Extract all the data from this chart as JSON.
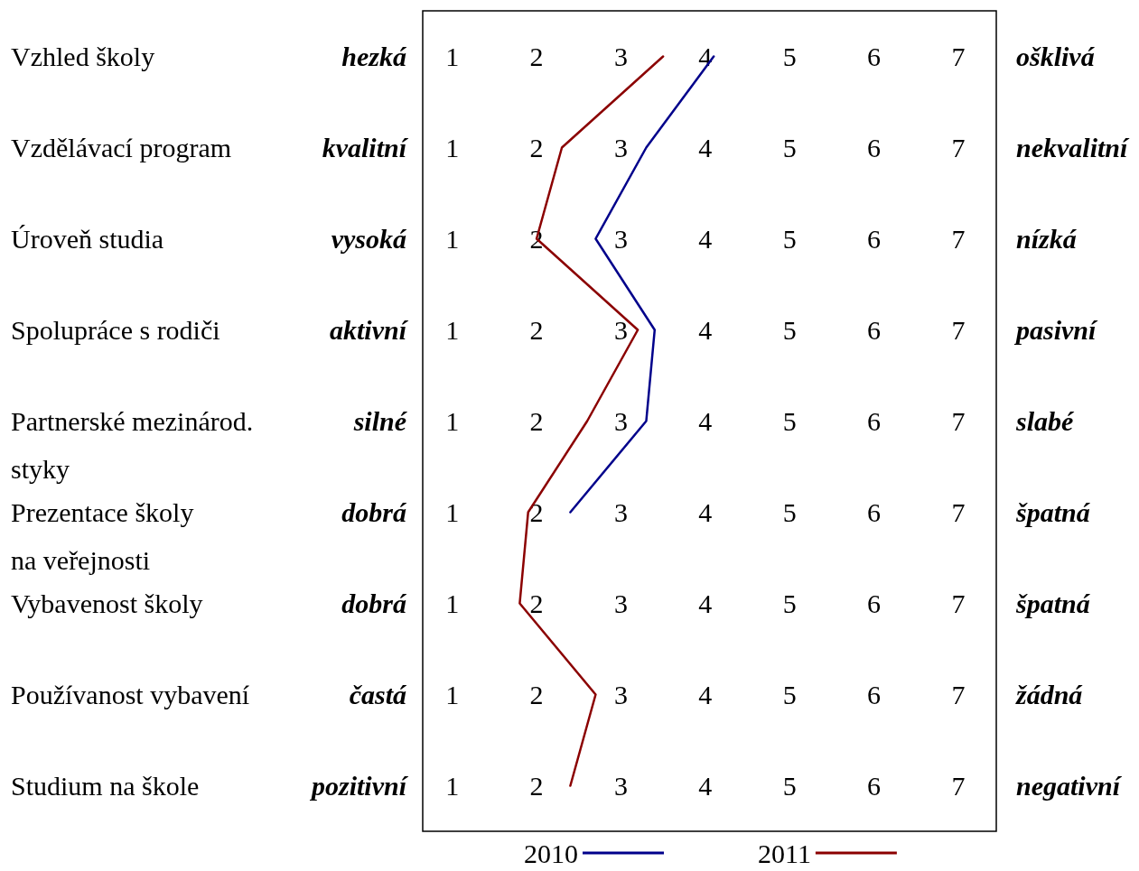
{
  "chart_data": {
    "type": "line",
    "orientation": "horizontal",
    "categories": [
      "Vzhled školy",
      "Vzdělávací program",
      "Úroveň studia",
      "Spolupráce s rodiči",
      "Partnerské mezinárod.\nstyky",
      "Prezentace školy\nna veřejnosti",
      "Vybavenost školy",
      "Používanost vybavení",
      "Studium na škole"
    ],
    "y2_categories": [
      "ošklivá",
      "nekvalitní",
      "nízká",
      "pasivní",
      "slabé",
      "špatná",
      "špatná",
      "žádná",
      "negativní"
    ],
    "annotations": [
      "hezká",
      "kvalitní",
      "vysoká",
      "aktivní",
      "silné",
      "dobrá",
      "dobrá",
      "častá",
      "pozitivní",
      "1",
      "2",
      "3",
      "4",
      "5",
      "6",
      "7",
      "1",
      "2",
      "3",
      "4",
      "5",
      "6",
      "7",
      "1",
      "2",
      "3",
      "4",
      "5",
      "6",
      "7",
      "1",
      "2",
      "3",
      "4",
      "5",
      "6",
      "7",
      "1",
      "2",
      "3",
      "4",
      "5",
      "6",
      "7",
      "1",
      "2",
      "3",
      "4",
      "5",
      "6",
      "7",
      "1",
      "2",
      "3",
      "4",
      "5",
      "6",
      "7",
      "1",
      "2",
      "3",
      "4",
      "5",
      "6",
      "7"
    ],
    "series": [
      {
        "name": "2010",
        "color": "#00008b",
        "values": [
          4.1,
          3.3,
          2.7,
          3.4,
          3.3,
          2.4,
          null,
          null,
          null
        ]
      },
      {
        "name": "2011",
        "color": "#8b0000",
        "values": [
          3.5,
          2.3,
          2.0,
          3.2,
          2.6,
          1.9,
          1.8,
          2.7,
          2.4
        ]
      }
    ],
    "xlim": [
      0.65,
      7.45
    ],
    "xticks": [
      1,
      2,
      3,
      4,
      5,
      6,
      7
    ],
    "legend": "bottom",
    "marker": "none",
    "line_style": "solid"
  }
}
